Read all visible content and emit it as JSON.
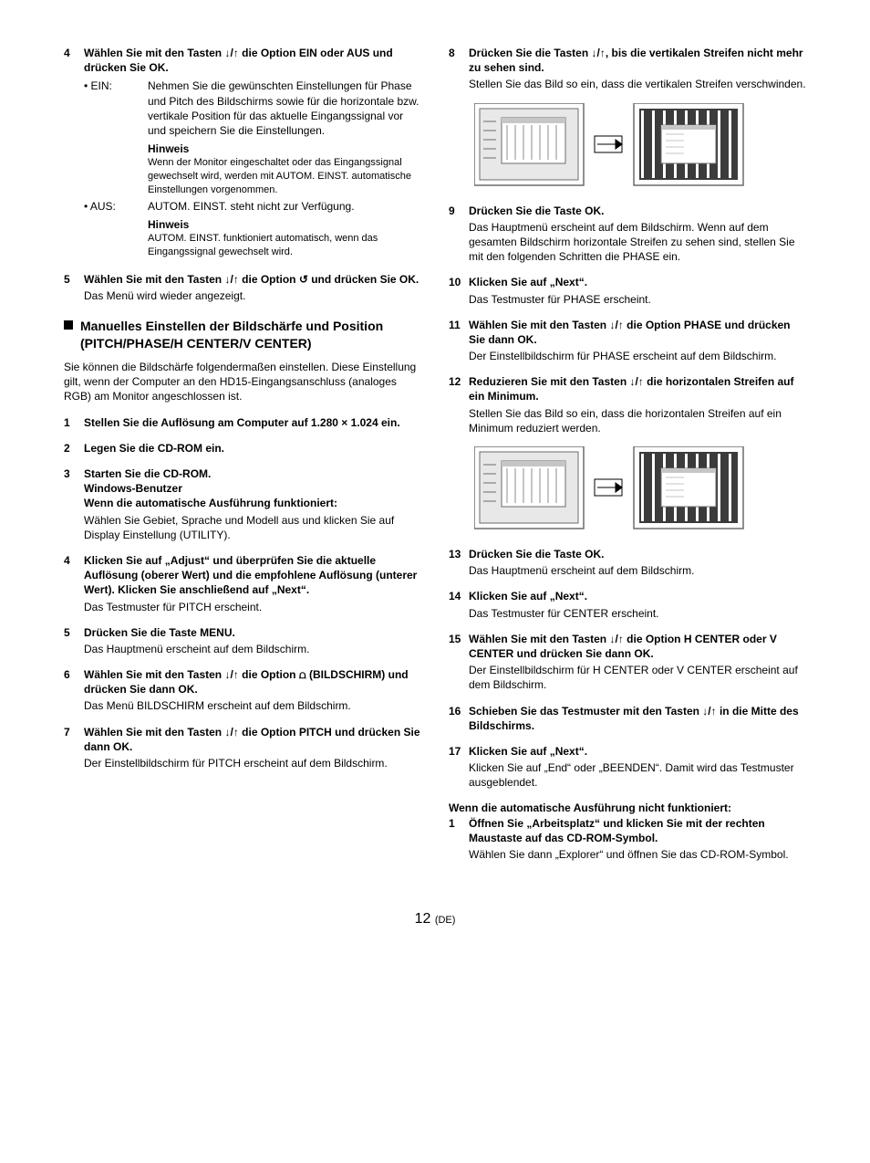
{
  "icons": {
    "down": "↓",
    "up": "↑",
    "downup": "↓/↑",
    "return": "↺",
    "screen": "⩍"
  },
  "col1": {
    "step4": {
      "num": "4",
      "title_a": "Wählen Sie mit den Tasten ",
      "title_b": " die Option EIN oder AUS und drücken Sie OK.",
      "ein_label": "• EIN:",
      "ein_text": "Nehmen Sie die gewünschten Einstellungen für Phase und Pitch des Bildschirms sowie für die horizontale bzw. vertikale Position für das aktuelle Eingangssignal vor und speichern Sie die Einstellungen.",
      "ein_note_label": "Hinweis",
      "ein_note_text": "Wenn der Monitor eingeschaltet oder das Eingangssignal gewechselt wird, werden mit AUTOM. EINST. automatische Einstellungen vorgenommen.",
      "aus_label": "• AUS:",
      "aus_text": "AUTOM. EINST. steht nicht zur Verfügung.",
      "aus_note_label": "Hinweis",
      "aus_note_text": "AUTOM. EINST. funktioniert automatisch, wenn das Eingangssignal gewechselt wird."
    },
    "step5": {
      "num": "5",
      "title_a": "Wählen Sie mit den Tasten ",
      "title_b": " die Option ",
      "title_c": " und drücken Sie OK.",
      "text": "Das Menü wird wieder angezeigt."
    },
    "heading": "Manuelles Einstellen der Bildschärfe und Position (PITCH/PHASE/H CENTER/V CENTER)",
    "intro": "Sie können die Bildschärfe folgendermaßen einstellen. Diese Einstellung gilt, wenn der Computer an den HD15-Eingangsanschluss (analoges RGB) am Monitor angeschlossen ist.",
    "s1": {
      "num": "1",
      "title": "Stellen Sie die Auflösung am Computer auf 1.280 × 1.024 ein."
    },
    "s2": {
      "num": "2",
      "title": "Legen Sie die CD-ROM ein."
    },
    "s3": {
      "num": "3",
      "title": "Starten Sie die CD-ROM.",
      "sub1": "Windows-Benutzer",
      "sub2": "Wenn die automatische Ausführung funktioniert:",
      "text": "Wählen Sie Gebiet, Sprache und Modell aus und klicken Sie auf Display Einstellung (UTILITY)."
    },
    "s4": {
      "num": "4",
      "title": "Klicken Sie auf „Adjust“ und überprüfen Sie die aktuelle Auflösung (oberer Wert) und die empfohlene Auflösung (unterer Wert). Klicken Sie anschließend auf „Next“.",
      "text": "Das Testmuster für PITCH erscheint."
    },
    "s5": {
      "num": "5",
      "title": "Drücken Sie die Taste MENU.",
      "text": "Das Hauptmenü erscheint auf dem Bildschirm."
    },
    "s6": {
      "num": "6",
      "title_a": "Wählen Sie mit den Tasten ",
      "title_b": " die Option ",
      "title_c": " (BILDSCHIRM) und drücken Sie dann OK.",
      "text": "Das Menü BILDSCHIRM erscheint auf dem Bildschirm."
    },
    "s7": {
      "num": "7",
      "title_a": "Wählen Sie mit den Tasten ",
      "title_b": " die Option PITCH und drücken Sie dann OK.",
      "text": "Der Einstellbildschirm für PITCH erscheint auf dem Bildschirm."
    }
  },
  "col2": {
    "s8": {
      "num": "8",
      "title_a": "Drücken Sie die Tasten ",
      "title_b": ", bis die vertikalen Streifen nicht mehr zu sehen sind.",
      "text": "Stellen Sie das Bild so ein, dass die vertikalen Streifen verschwinden."
    },
    "s9": {
      "num": "9",
      "title": "Drücken Sie die Taste OK.",
      "text": "Das Hauptmenü erscheint auf dem Bildschirm. Wenn auf dem gesamten Bildschirm horizontale Streifen zu sehen sind, stellen Sie mit den folgenden Schritten die PHASE ein."
    },
    "s10": {
      "num": "10",
      "title": "Klicken Sie auf „Next“.",
      "text": "Das Testmuster für PHASE erscheint."
    },
    "s11": {
      "num": "11",
      "title_a": "Wählen Sie mit den Tasten ",
      "title_b": " die Option PHASE und drücken Sie dann OK.",
      "text": "Der Einstellbildschirm für PHASE erscheint auf dem Bildschirm."
    },
    "s12": {
      "num": "12",
      "title_a": "Reduzieren Sie mit den Tasten ",
      "title_b": " die horizontalen Streifen auf ein Minimum.",
      "text": "Stellen Sie das Bild so ein, dass die horizontalen Streifen auf ein Minimum reduziert werden."
    },
    "s13": {
      "num": "13",
      "title": "Drücken Sie die Taste OK.",
      "text": "Das Hauptmenü erscheint auf dem Bildschirm."
    },
    "s14": {
      "num": "14",
      "title": "Klicken Sie auf „Next“.",
      "text": "Das Testmuster für CENTER erscheint."
    },
    "s15": {
      "num": "15",
      "title_a": "Wählen Sie mit den Tasten ",
      "title_b": " die Option H CENTER oder V CENTER und drücken Sie dann OK.",
      "text": "Der Einstellbildschirm für H CENTER oder V CENTER erscheint auf dem Bildschirm."
    },
    "s16": {
      "num": "16",
      "title_a": "Schieben Sie das Testmuster mit den Tasten ",
      "title_b": " in die Mitte des Bildschirms."
    },
    "s17": {
      "num": "17",
      "title": "Klicken Sie auf „Next“.",
      "text": "Klicken Sie auf „End“ oder „BEENDEN“. Damit wird das Testmuster ausgeblendet."
    },
    "alt_heading": "Wenn die automatische Ausführung nicht funktioniert:",
    "alt1": {
      "num": "1",
      "title": "Öffnen Sie „Arbeitsplatz“ und klicken Sie mit der rechten Maustaste auf das CD-ROM-Symbol.",
      "text": "Wählen Sie dann „Explorer“ und öffnen Sie das CD-ROM-Symbol."
    }
  },
  "diagram": {
    "outer_stroke": "#6b6b6b",
    "inner_fill": "#e8e8e8",
    "win_fill": "#ffffff",
    "win_stroke": "#6b6b6b",
    "stripe_light": "#c6c6c6",
    "stripe_dark": "#3b3b3b",
    "arrow_stroke": "#000000"
  },
  "footer": {
    "page": "12",
    "lang": "(DE)"
  }
}
